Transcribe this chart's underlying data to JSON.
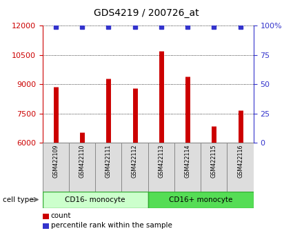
{
  "title": "GDS4219 / 200726_at",
  "samples": [
    "GSM422109",
    "GSM422110",
    "GSM422111",
    "GSM422112",
    "GSM422113",
    "GSM422114",
    "GSM422115",
    "GSM422116"
  ],
  "counts": [
    8850,
    6550,
    9300,
    8800,
    10700,
    9400,
    6850,
    7650
  ],
  "percentile_ranks": [
    99,
    99,
    99,
    99,
    99,
    99,
    99,
    99
  ],
  "baseline": 6000,
  "ylim_left": [
    6000,
    12000
  ],
  "ylim_right": [
    0,
    100
  ],
  "yticks_left": [
    6000,
    7500,
    9000,
    10500,
    12000
  ],
  "yticks_right": [
    0,
    25,
    50,
    75,
    100
  ],
  "yticklabels_right": [
    "0",
    "25",
    "50",
    "75",
    "100%"
  ],
  "bar_color": "#cc0000",
  "dot_color": "#3333cc",
  "left_tick_color": "#cc0000",
  "right_tick_color": "#3333cc",
  "group1_label": "CD16- monocyte",
  "group2_label": "CD16+ monocyte",
  "group1_color": "#ccffcc",
  "group2_color": "#55dd55",
  "group_edge_color": "#33aa33",
  "cell_type_label": "cell type",
  "legend_count_label": "count",
  "legend_pct_label": "percentile rank within the sample",
  "grid_color": "#000000",
  "background_color": "#ffffff",
  "plot_bg_color": "#ffffff",
  "sample_box_color": "#dddddd",
  "sample_box_edge": "#888888",
  "bar_linewidth": 5
}
